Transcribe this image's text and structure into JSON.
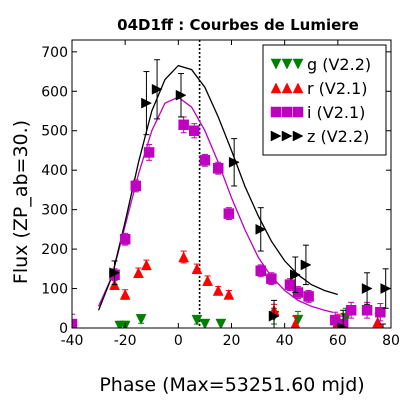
{
  "chart_data": {
    "type": "scatter",
    "title": "04D1ff : Courbes de Lumiere",
    "xlabel": "Phase (Max=53251.60 mjd)",
    "ylabel": "Flux (ZP_ab=30.)",
    "xlim": [
      -40,
      80
    ],
    "ylim": [
      0,
      730
    ],
    "xticks": [
      "-40",
      "-20",
      "0",
      "20",
      "40",
      "60",
      "80"
    ],
    "yticks": [
      "0",
      "100",
      "200",
      "300",
      "400",
      "500",
      "600",
      "700"
    ],
    "legend_position": "top-right",
    "max_phase_line": 8,
    "series": [
      {
        "name": "g (V2.2)",
        "color": "#008000",
        "marker": "triangle-down",
        "points": [
          {
            "x": -22,
            "y": 5,
            "err": 12
          },
          {
            "x": -20,
            "y": 5,
            "err": 12
          },
          {
            "x": -14,
            "y": 22,
            "err": 10
          },
          {
            "x": 7,
            "y": 20,
            "err": 10
          },
          {
            "x": 10,
            "y": 10,
            "err": 10
          },
          {
            "x": 16,
            "y": 10,
            "err": 10
          },
          {
            "x": 36,
            "y": 30,
            "err": 20
          },
          {
            "x": 45,
            "y": 20,
            "err": 22
          },
          {
            "x": 63,
            "y": 25,
            "err": 25
          }
        ]
      },
      {
        "name": "r (V2.1)",
        "color": "#ff0000",
        "marker": "triangle-up",
        "points": [
          {
            "x": -24,
            "y": 110,
            "err": 12
          },
          {
            "x": -20,
            "y": 85,
            "err": 12
          },
          {
            "x": -15,
            "y": 140,
            "err": 12
          },
          {
            "x": -12,
            "y": 160,
            "err": 12
          },
          {
            "x": 2,
            "y": 180,
            "err": 15
          },
          {
            "x": 7,
            "y": 150,
            "err": 12
          },
          {
            "x": 11,
            "y": 120,
            "err": 12
          },
          {
            "x": 15,
            "y": 95,
            "err": 10
          },
          {
            "x": 19,
            "y": 85,
            "err": 10
          },
          {
            "x": 36,
            "y": 45,
            "err": 15
          },
          {
            "x": 44,
            "y": 10,
            "err": 20
          },
          {
            "x": 60,
            "y": 15,
            "err": 20
          },
          {
            "x": 75,
            "y": 15,
            "err": 22
          },
          {
            "x": 82,
            "y": 10,
            "err": 20
          }
        ]
      },
      {
        "name": "i (V2.1)",
        "color": "#bf00bf",
        "marker": "square",
        "points": [
          {
            "x": -40,
            "y": 10,
            "err": 25
          },
          {
            "x": -24,
            "y": 135,
            "err": 15
          },
          {
            "x": -20,
            "y": 225,
            "err": 15
          },
          {
            "x": -16,
            "y": 360,
            "err": 15
          },
          {
            "x": -11,
            "y": 445,
            "err": 20
          },
          {
            "x": 2,
            "y": 515,
            "err": 20
          },
          {
            "x": 6,
            "y": 500,
            "err": 18
          },
          {
            "x": 10,
            "y": 425,
            "err": 15
          },
          {
            "x": 15,
            "y": 405,
            "err": 15
          },
          {
            "x": 19,
            "y": 290,
            "err": 15
          },
          {
            "x": 31,
            "y": 145,
            "err": 15
          },
          {
            "x": 35,
            "y": 125,
            "err": 15
          },
          {
            "x": 42,
            "y": 110,
            "err": 15
          },
          {
            "x": 45,
            "y": 90,
            "err": 15
          },
          {
            "x": 49,
            "y": 80,
            "err": 15
          },
          {
            "x": 59,
            "y": 20,
            "err": 20
          },
          {
            "x": 62,
            "y": 10,
            "err": 20
          },
          {
            "x": 65,
            "y": 45,
            "err": 20
          },
          {
            "x": 71,
            "y": 45,
            "err": 20
          },
          {
            "x": 76,
            "y": 40,
            "err": 22
          },
          {
            "x": 82,
            "y": 5,
            "err": 22
          }
        ]
      },
      {
        "name": "z (V2.2)",
        "color": "#000000",
        "marker": "triangle-right",
        "points": [
          {
            "x": -24,
            "y": 140,
            "err": 30
          },
          {
            "x": -12,
            "y": 570,
            "err": 80
          },
          {
            "x": -8,
            "y": 605,
            "err": 75
          },
          {
            "x": 1,
            "y": 590,
            "err": 55
          },
          {
            "x": 21,
            "y": 420,
            "err": 60
          },
          {
            "x": 31,
            "y": 250,
            "err": 55
          },
          {
            "x": 36,
            "y": 30,
            "err": 40
          },
          {
            "x": 44,
            "y": 135,
            "err": 45
          },
          {
            "x": 48,
            "y": 160,
            "err": 50
          },
          {
            "x": 62,
            "y": 0,
            "err": 45
          },
          {
            "x": 71,
            "y": 100,
            "err": 40
          },
          {
            "x": 77,
            "y": -30,
            "err": 40
          },
          {
            "x": 78,
            "y": 100,
            "err": 50
          }
        ]
      }
    ],
    "fits": [
      {
        "series": "i (V2.1)",
        "color": "#bf00bf",
        "points": [
          [
            -30,
            55
          ],
          [
            -25,
            130
          ],
          [
            -20,
            260
          ],
          [
            -15,
            390
          ],
          [
            -10,
            500
          ],
          [
            -5,
            570
          ],
          [
            0,
            585
          ],
          [
            5,
            560
          ],
          [
            10,
            500
          ],
          [
            15,
            420
          ],
          [
            20,
            330
          ],
          [
            25,
            250
          ],
          [
            30,
            180
          ],
          [
            35,
            130
          ],
          [
            40,
            95
          ],
          [
            45,
            70
          ],
          [
            50,
            55
          ],
          [
            55,
            45
          ],
          [
            58,
            40
          ]
        ]
      },
      {
        "series": "z (V2.2)",
        "color": "#000000",
        "points": [
          [
            -30,
            45
          ],
          [
            -25,
            130
          ],
          [
            -20,
            270
          ],
          [
            -15,
            420
          ],
          [
            -10,
            550
          ],
          [
            -5,
            630
          ],
          [
            0,
            665
          ],
          [
            5,
            655
          ],
          [
            10,
            610
          ],
          [
            15,
            535
          ],
          [
            20,
            450
          ],
          [
            25,
            360
          ],
          [
            30,
            285
          ],
          [
            35,
            220
          ],
          [
            40,
            170
          ],
          [
            45,
            135
          ],
          [
            50,
            110
          ],
          [
            55,
            95
          ],
          [
            60,
            85
          ]
        ]
      }
    ]
  }
}
